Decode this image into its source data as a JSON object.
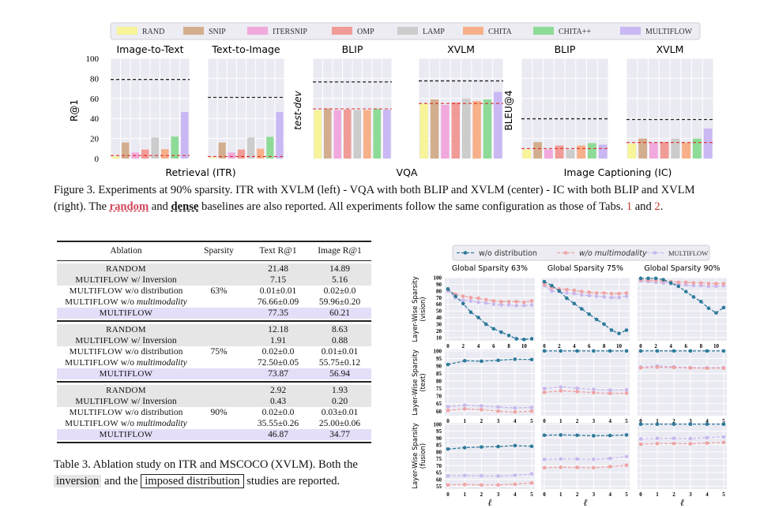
{
  "figure_caption": {
    "prefix": "Figure 3. Experiments at 90% sparsity. ITR with XVLM (left) - VQA with both BLIP and XVLM (center) - IC with both BLIP and XVLM",
    "line2_a": "(right). The ",
    "random": "random",
    "and": " and ",
    "dense": "dense",
    "line2_b": " baselines are also reported. All experiments follow the same configuration as those of Tabs. ",
    "ref1": "1",
    "and2": " and ",
    "ref2": "2",
    "end": "."
  },
  "table": {
    "headers": [
      "Ablation",
      "Sparsity",
      "Text R@1",
      "Image R@1"
    ],
    "groups": [
      {
        "sparsity": "63%",
        "rows": [
          [
            "RANDOM",
            "21.48",
            "14.89"
          ],
          [
            "MULTIFLOW w/ Inversion",
            "7.15",
            "5.16"
          ],
          [
            "MULTIFLOW w/o distribution",
            "0.01±0.01",
            "0.02±0.0"
          ],
          [
            "MULTIFLOW w/o multimodality",
            "76.66±0.09",
            "59.96±0.20"
          ],
          [
            "MULTIFLOW",
            "77.35",
            "60.21"
          ]
        ]
      },
      {
        "sparsity": "75%",
        "rows": [
          [
            "RANDOM",
            "12.18",
            "8.63"
          ],
          [
            "MULTIFLOW w/ Inversion",
            "1.91",
            "0.88"
          ],
          [
            "MULTIFLOW w/o distribution",
            "0.02±0.0",
            "0.01±0.01"
          ],
          [
            "MULTIFLOW w/o multimodality",
            "72.50±0.05",
            "55.75±0.12"
          ],
          [
            "MULTIFLOW",
            "73.87",
            "56.94"
          ]
        ]
      },
      {
        "sparsity": "90%",
        "rows": [
          [
            "RANDOM",
            "2.92",
            "1.93"
          ],
          [
            "MULTIFLOW w/ Inversion",
            "0.43",
            "0.20"
          ],
          [
            "MULTIFLOW w/o distribution",
            "0.02±0.0",
            "0.03±0.01"
          ],
          [
            "MULTIFLOW w/o multimodality",
            "35.55±0.26",
            "25.00±0.06"
          ],
          [
            "MULTIFLOW",
            "46.87",
            "34.77"
          ]
        ]
      }
    ]
  },
  "table_caption": {
    "line1": "Table 3. Ablation study on ITR and MSCOCO (XVLM). Both the",
    "inversion": "inversion",
    "mid": " and the ",
    "imposed": "imposed distribution",
    "end": " studies are reported."
  },
  "chart_data": [
    {
      "type": "bar",
      "legend_placement": "top",
      "grid": true,
      "legend": [
        "RAND",
        "SNIP",
        "ITERSNIP",
        "OMP",
        "LAMP",
        "CHITA",
        "CHITA++",
        "MULTIFLOW"
      ],
      "colors": [
        "#f7f49a",
        "#d3ae8e",
        "#f1a9dd",
        "#f19b97",
        "#cccccc",
        "#f7b089",
        "#8edb98",
        "#c9b8f3"
      ],
      "random_line_color": "#e0302a",
      "dense_line_color": "#222222",
      "ylim": [
        0,
        100
      ],
      "yticks": [
        0,
        20,
        40,
        60,
        80,
        100
      ],
      "groups": [
        {
          "label": "Retrieval (ITR)",
          "ylabel": "R@1"
        },
        {
          "label": "VQA",
          "ylabel": "test-dev"
        },
        {
          "label": "Image Captioning (IC)",
          "ylabel": "BLEU@4"
        }
      ],
      "panels": [
        {
          "title": "Image-to-Text",
          "group": 0,
          "values": [
            2,
            16,
            6,
            9,
            21,
            9.4,
            22,
            46.5
          ],
          "dense": 79,
          "random": 3
        },
        {
          "title": "Text-to-Image",
          "group": 0,
          "values": [
            1,
            16,
            6,
            9,
            21,
            9.7,
            21.7,
            46.5
          ],
          "dense": 61,
          "random": 2
        },
        {
          "title": "BLIP",
          "group": 1,
          "values": [
            48.3,
            50,
            48.3,
            48.8,
            48.3,
            48.3,
            49.6,
            48.8
          ],
          "dense": 76.5,
          "random": 49.6
        },
        {
          "title": "XVLM",
          "group": 1,
          "values": [
            55,
            59,
            53.5,
            56,
            60,
            57.4,
            59,
            66.6
          ],
          "dense": 77.5,
          "random": 55
        },
        {
          "title": "BLIP",
          "group": 2,
          "values": [
            9,
            16.4,
            9,
            13,
            9,
            13,
            15.4,
            13.8
          ],
          "dense": 39.7,
          "random": 10
        },
        {
          "title": "XVLM",
          "group": 2,
          "values": [
            15,
            20,
            15.7,
            16.4,
            20,
            15.7,
            20,
            30
          ],
          "dense": 39,
          "random": 16
        }
      ]
    },
    {
      "type": "line",
      "legend_placement": "top",
      "grid": true,
      "series_names": [
        "w/o distribution",
        "w/o multimodality",
        "MULTIFLOW"
      ],
      "colors": [
        "#2d7a9a",
        "#f0a3a3",
        "#c9b8ee"
      ],
      "columns": [
        "Global Sparsity 63%",
        "Global Sparsity 75%",
        "Global Sparsity 90%"
      ],
      "xlabel": "ℓ",
      "rows": [
        {
          "ylabel": "Layer-Wise Sparsity (vision)",
          "ylim": [
            5,
            100
          ],
          "yticks": [
            10,
            20,
            30,
            40,
            50,
            60,
            70,
            80,
            90,
            100
          ],
          "xticks": [
            0,
            2,
            4,
            6,
            8,
            10
          ],
          "x": [
            0,
            1,
            2,
            3,
            4,
            5,
            6,
            7,
            8,
            9,
            10,
            11
          ],
          "panels": [
            [
              [
                83,
                72,
                61,
                48,
                40,
                30,
                23,
                18,
                13,
                8,
                7,
                8
              ],
              [
                82,
                75,
                72,
                70,
                69,
                67,
                65,
                64,
                64,
                64,
                63,
                65
              ],
              [
                80,
                70,
                66,
                65,
                63,
                62,
                60,
                59,
                59,
                58,
                58,
                59
              ]
            ],
            [
              [
                94,
                88,
                80,
                69,
                61,
                53,
                45,
                37,
                30,
                21,
                16,
                21
              ],
              [
                90,
                85,
                83,
                82,
                81,
                79,
                78,
                77,
                77,
                76,
                76,
                77
              ],
              [
                88,
                80,
                79,
                77,
                76,
                74,
                73,
                72,
                71,
                70,
                70,
                72
              ]
            ],
            [
              [
                99,
                99,
                99,
                97,
                92,
                87,
                79,
                71,
                64,
                54,
                47,
                55
              ],
              [
                97,
                96,
                96,
                95,
                94,
                93,
                93,
                92,
                92,
                91,
                91,
                91
              ],
              [
                95,
                94,
                93,
                92,
                91,
                90,
                89,
                88,
                88,
                87,
                87,
                88
              ]
            ]
          ]
        },
        {
          "ylabel": "Layer-Wise Sparsity (text)",
          "ylim": [
            57,
            101
          ],
          "yticks": [
            60,
            65,
            70,
            75,
            80,
            85,
            90,
            95,
            100
          ],
          "xticks": [
            0,
            1,
            2,
            3,
            4,
            5
          ],
          "x": [
            0,
            1,
            2,
            3,
            4,
            5
          ],
          "panels": [
            [
              [
                91,
                93.5,
                93.2,
                93.8,
                94.5,
                94.3
              ],
              [
                60.5,
                61.5,
                61,
                60,
                59.5,
                60
              ],
              [
                63,
                64,
                63.5,
                62.8,
                62.2,
                62.5
              ]
            ],
            [
              [
                100,
                100,
                100,
                100,
                100,
                100
              ],
              [
                72.5,
                73.5,
                73,
                72.3,
                71.8,
                72
              ],
              [
                75,
                76,
                75.2,
                74.5,
                74,
                74.2
              ]
            ],
            [
              [
                100,
                100,
                100,
                100,
                100,
                100
              ],
              [
                88.8,
                89.2,
                89,
                88.7,
                88.5,
                88.6
              ],
              [
                89.3,
                90,
                89.5,
                89,
                88.9,
                89
              ]
            ]
          ]
        },
        {
          "ylabel": "Layer-Wise Sparsity (fusion)",
          "ylim": [
            53,
            101
          ],
          "yticks": [
            55,
            60,
            65,
            70,
            75,
            80,
            85,
            90,
            95,
            100
          ],
          "xticks": [
            0,
            1,
            2,
            3,
            4,
            5
          ],
          "x": [
            0,
            1,
            2,
            3,
            4,
            5
          ],
          "panels": [
            [
              [
                82,
                83,
                83.5,
                83.8,
                84.5,
                84
              ],
              [
                56,
                56.3,
                56,
                56,
                56.5,
                57.5
              ],
              [
                62.5,
                62.8,
                62.6,
                62.4,
                63,
                64
              ]
            ],
            [
              [
                92,
                92.2,
                92,
                91.6,
                91.8,
                92.2
              ],
              [
                68.5,
                68.8,
                68.7,
                68.5,
                69.2,
                70.3
              ],
              [
                74.5,
                74.8,
                74.8,
                74.5,
                75.2,
                76.5
              ]
            ],
            [
              [
                100,
                100,
                100,
                100,
                100,
                100
              ],
              [
                85.5,
                86,
                86,
                85.8,
                86.3,
                86.8
              ],
              [
                89.3,
                89.8,
                89.8,
                89.6,
                90.2,
                90.7
              ]
            ]
          ]
        }
      ]
    }
  ]
}
